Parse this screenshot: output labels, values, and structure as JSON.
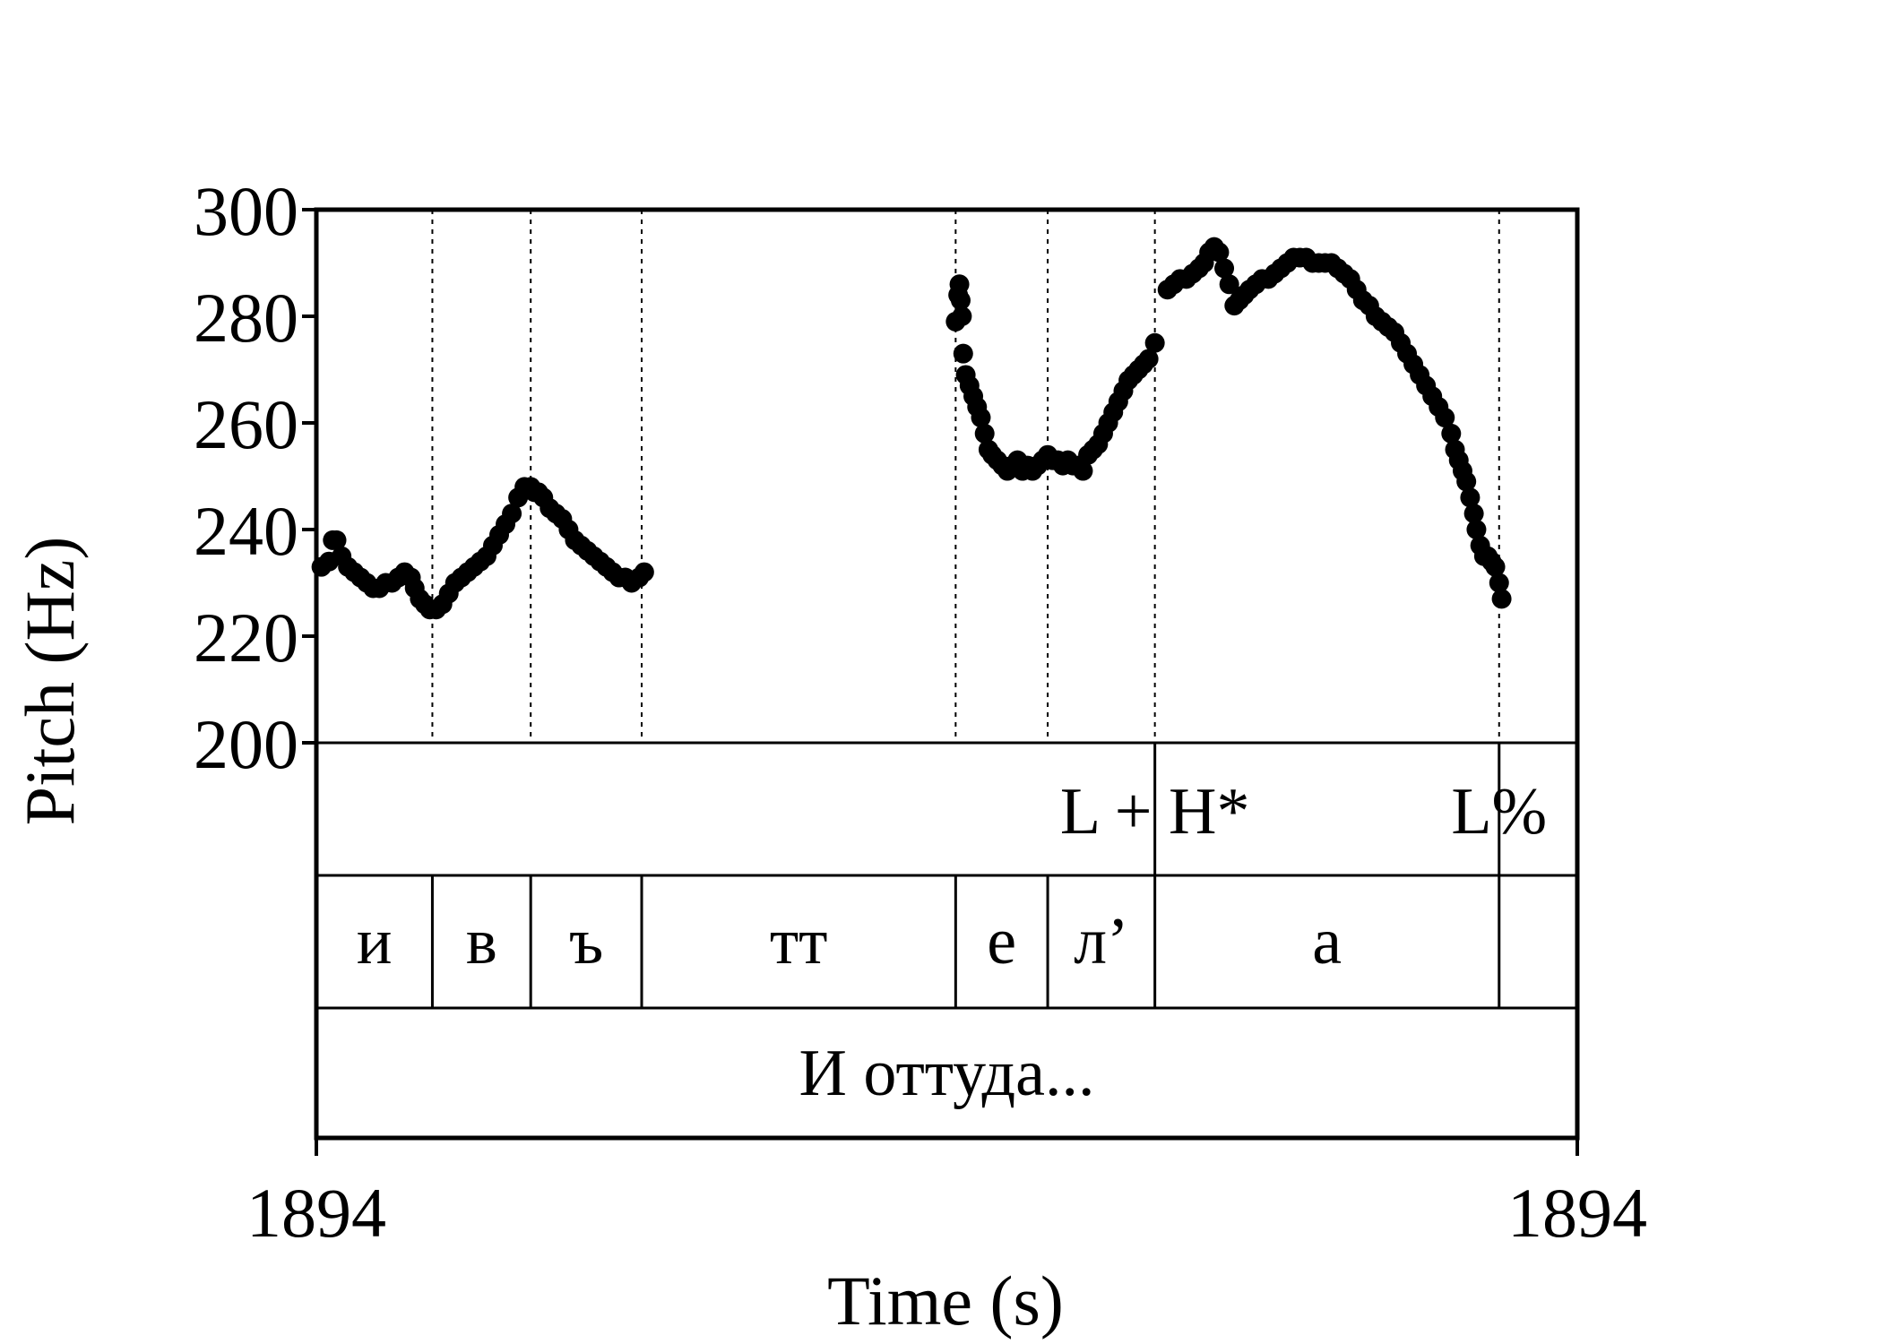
{
  "chart_data": {
    "type": "scatter",
    "xlabel": "Time (s)",
    "ylabel": "Pitch (Hz)",
    "ylim": [
      200,
      300
    ],
    "yticks": [
      "300",
      "280",
      "260",
      "240",
      "220",
      "200"
    ],
    "xtick_labels": [
      "1894",
      "1894"
    ],
    "grid": false,
    "boundaries_fraction": [
      0.092,
      0.17,
      0.258,
      0.507,
      0.58,
      0.665,
      0.938
    ],
    "tone_tier": [
      {
        "label": "L + H*",
        "at": 0.665
      },
      {
        "label": "L%",
        "at": 0.938
      }
    ],
    "segment_tier": [
      {
        "label": "и",
        "start": 0.0,
        "end": 0.092
      },
      {
        "label": "в",
        "start": 0.092,
        "end": 0.17
      },
      {
        "label": "ъ",
        "start": 0.17,
        "end": 0.258
      },
      {
        "label": "тт",
        "start": 0.258,
        "end": 0.507
      },
      {
        "label": "е",
        "start": 0.507,
        "end": 0.58
      },
      {
        "label": "л’",
        "start": 0.58,
        "end": 0.665
      },
      {
        "label": "а",
        "start": 0.665,
        "end": 0.938
      },
      {
        "label": "",
        "start": 0.938,
        "end": 1.0
      }
    ],
    "word_tier": [
      {
        "label": "И оттуда...",
        "start": 0.0,
        "end": 1.0
      }
    ],
    "pitch_contours": [
      {
        "x": [
          0.004,
          0.01,
          0.013,
          0.016,
          0.02,
          0.025,
          0.03,
          0.035,
          0.04,
          0.045,
          0.05,
          0.055,
          0.06,
          0.065,
          0.07,
          0.075,
          0.078,
          0.082,
          0.086,
          0.09,
          0.095,
          0.1,
          0.105,
          0.11,
          0.115,
          0.12,
          0.125,
          0.13,
          0.135,
          0.14,
          0.145,
          0.15,
          0.155,
          0.16,
          0.165,
          0.17,
          0.173,
          0.176,
          0.18,
          0.185,
          0.19,
          0.195,
          0.2,
          0.205,
          0.21,
          0.215,
          0.22,
          0.225,
          0.23,
          0.235,
          0.24,
          0.245,
          0.25,
          0.256,
          0.26
        ],
        "y": [
          233,
          234,
          238,
          238,
          235,
          233,
          232,
          231,
          230,
          229,
          229,
          230,
          230,
          231,
          232,
          231,
          229,
          227,
          226,
          225,
          225,
          226,
          228,
          230,
          231,
          232,
          233,
          234,
          235,
          237,
          239,
          241,
          243,
          246,
          248,
          248,
          247,
          247,
          246,
          244,
          243,
          242,
          240,
          238,
          237,
          236,
          235,
          234,
          233,
          232,
          231,
          231,
          230,
          231,
          232
        ]
      },
      {
        "x": [
          0.507,
          0.509,
          0.51,
          0.511,
          0.512,
          0.513,
          0.515,
          0.518,
          0.521,
          0.524,
          0.527,
          0.53,
          0.533,
          0.536,
          0.54,
          0.544,
          0.548,
          0.552,
          0.556,
          0.56,
          0.564,
          0.568,
          0.572,
          0.576,
          0.58,
          0.584,
          0.588,
          0.592,
          0.596,
          0.6,
          0.604,
          0.608,
          0.612,
          0.616,
          0.62,
          0.624,
          0.628,
          0.632,
          0.636,
          0.64,
          0.644,
          0.648,
          0.652,
          0.656,
          0.66,
          0.665
        ],
        "y": [
          279,
          284,
          286,
          283,
          280,
          273,
          269,
          267,
          265,
          263,
          261,
          258,
          255,
          254,
          253,
          252,
          251,
          252,
          253,
          251,
          252,
          251,
          252,
          253,
          254,
          253,
          253,
          252,
          253,
          252,
          252,
          251,
          254,
          255,
          256,
          258,
          260,
          262,
          264,
          266,
          268,
          269,
          270,
          271,
          272,
          275
        ]
      },
      {
        "x": [
          0.675,
          0.68,
          0.685,
          0.69,
          0.695,
          0.7,
          0.704,
          0.708,
          0.712,
          0.716,
          0.72,
          0.724,
          0.728,
          0.732,
          0.736,
          0.74,
          0.745,
          0.75,
          0.755,
          0.76,
          0.765,
          0.77,
          0.775,
          0.78,
          0.785,
          0.79,
          0.795,
          0.8,
          0.805,
          0.81,
          0.815,
          0.82,
          0.825,
          0.83,
          0.835,
          0.84,
          0.845,
          0.85,
          0.855,
          0.86,
          0.865,
          0.87,
          0.875,
          0.88,
          0.885,
          0.89,
          0.895,
          0.9,
          0.903,
          0.906,
          0.909,
          0.912,
          0.915,
          0.918,
          0.92,
          0.923,
          0.926,
          0.929,
          0.932,
          0.935,
          0.938,
          0.94
        ],
        "y": [
          285,
          286,
          287,
          287,
          288,
          289,
          290,
          292,
          293,
          292,
          289,
          286,
          282,
          283,
          284,
          285,
          286,
          287,
          287,
          288,
          289,
          290,
          291,
          291,
          291,
          290,
          290,
          290,
          290,
          289,
          288,
          287,
          285,
          283,
          282,
          280,
          279,
          278,
          277,
          275,
          273,
          271,
          269,
          267,
          265,
          263,
          261,
          258,
          255,
          253,
          251,
          249,
          246,
          243,
          240,
          237,
          235,
          235,
          234,
          233,
          230,
          227
        ]
      }
    ]
  }
}
